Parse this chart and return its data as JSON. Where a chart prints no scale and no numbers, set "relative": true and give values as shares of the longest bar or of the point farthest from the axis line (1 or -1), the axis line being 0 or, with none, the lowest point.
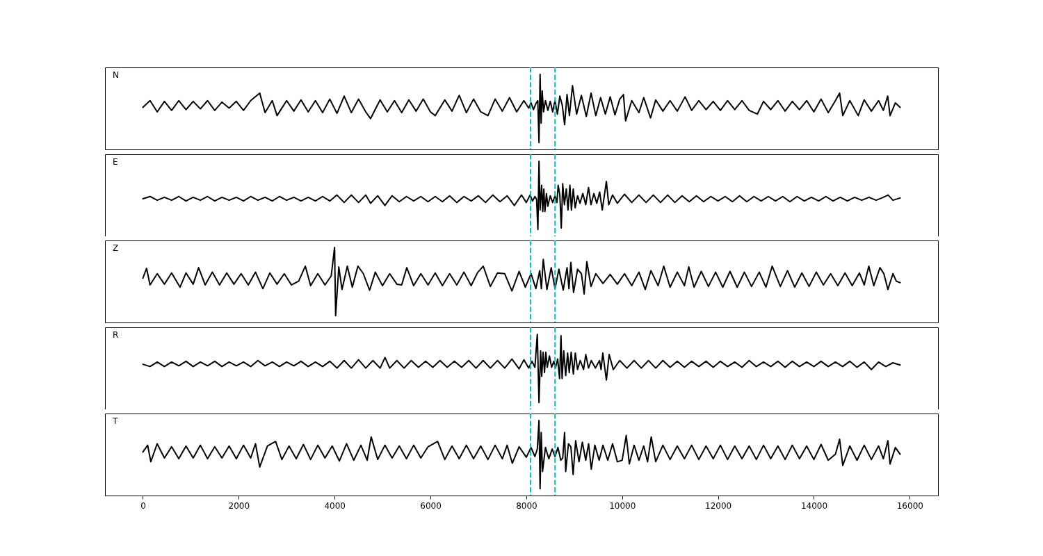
{
  "chart_data": [
    {
      "type": "line",
      "title": "N",
      "relative": true,
      "xlim": [
        -790,
        16590
      ],
      "xticks": [
        0,
        2000,
        4000,
        6000,
        8000,
        10000,
        12000,
        14000,
        16000
      ],
      "tick_labels": false,
      "ref_lines": [
        {
          "axis": "x",
          "value": 8090,
          "color": "#00bfbf",
          "line_style": "dashed"
        },
        {
          "axis": "x",
          "value": 8600,
          "color": "#00bfbf",
          "line_style": "dashed"
        }
      ],
      "x": [
        0,
        150,
        300,
        450,
        600,
        750,
        900,
        1050,
        1200,
        1350,
        1500,
        1650,
        1800,
        1950,
        2100,
        2250,
        2438,
        2550,
        2700,
        2800,
        3000,
        3150,
        3300,
        3450,
        3600,
        3750,
        3900,
        4050,
        4200,
        4350,
        4500,
        4650,
        4750,
        4950,
        5100,
        5250,
        5400,
        5550,
        5700,
        5850,
        6000,
        6100,
        6300,
        6450,
        6600,
        6750,
        6900,
        7050,
        7200,
        7350,
        7500,
        7650,
        7800,
        7950,
        8050,
        8100,
        8150,
        8200,
        8240,
        8265,
        8288,
        8310,
        8332,
        8360,
        8400,
        8450,
        8500,
        8550,
        8600,
        8650,
        8700,
        8750,
        8800,
        8850,
        8900,
        8964,
        9050,
        9150,
        9252,
        9352,
        9450,
        9550,
        9650,
        9750,
        9850,
        9950,
        10027,
        10072,
        10200,
        10350,
        10450,
        10592,
        10700,
        10850,
        11000,
        11150,
        11313,
        11450,
        11600,
        11750,
        11900,
        12050,
        12200,
        12350,
        12500,
        12650,
        12820,
        12950,
        13100,
        13250,
        13400,
        13550,
        13700,
        13850,
        14000,
        14150,
        14300,
        14450,
        14537,
        14603,
        14750,
        14925,
        15050,
        15200,
        15350,
        15450,
        15540,
        15590,
        15700,
        15800
      ],
      "series": [
        {
          "color": "#000000",
          "values": [
            0.56,
            0.65,
            0.5,
            0.64,
            0.52,
            0.65,
            0.53,
            0.64,
            0.54,
            0.65,
            0.52,
            0.63,
            0.55,
            0.64,
            0.52,
            0.65,
            0.75,
            0.49,
            0.65,
            0.45,
            0.65,
            0.51,
            0.66,
            0.5,
            0.65,
            0.49,
            0.67,
            0.48,
            0.71,
            0.49,
            0.67,
            0.5,
            0.41,
            0.66,
            0.5,
            0.65,
            0.49,
            0.66,
            0.51,
            0.67,
            0.5,
            0.45,
            0.66,
            0.51,
            0.72,
            0.49,
            0.67,
            0.5,
            0.45,
            0.67,
            0.51,
            0.69,
            0.5,
            0.65,
            0.55,
            0.62,
            0.53,
            0.61,
            0.65,
            0.09,
            1,
            0.35,
            0.78,
            0.5,
            0.65,
            0.52,
            0.64,
            0.5,
            0.65,
            0.47,
            0.71,
            0.59,
            0.33,
            0.73,
            0.45,
            0.85,
            0.47,
            0.72,
            0.44,
            0.75,
            0.45,
            0.69,
            0.47,
            0.7,
            0.46,
            0.67,
            0.73,
            0.38,
            0.65,
            0.49,
            0.69,
            0.42,
            0.66,
            0.51,
            0.65,
            0.51,
            0.7,
            0.52,
            0.65,
            0.53,
            0.64,
            0.52,
            0.65,
            0.53,
            0.65,
            0.52,
            0.47,
            0.64,
            0.53,
            0.65,
            0.51,
            0.64,
            0.53,
            0.65,
            0.5,
            0.67,
            0.49,
            0.65,
            0.75,
            0.45,
            0.65,
            0.45,
            0.66,
            0.51,
            0.65,
            0.52,
            0.71,
            0.45,
            0.62,
            0.56
          ]
        }
      ]
    },
    {
      "type": "line",
      "title": "E",
      "relative": true,
      "xlim": [
        -790,
        16590
      ],
      "xticks": [
        0,
        2000,
        4000,
        6000,
        8000,
        10000,
        12000,
        14000,
        16000
      ],
      "tick_labels": false,
      "ref_lines": [
        {
          "axis": "x",
          "value": 8090,
          "color": "#00bfbf",
          "line_style": "dashed"
        },
        {
          "axis": "x",
          "value": 8600,
          "color": "#00bfbf",
          "line_style": "dashed"
        }
      ],
      "x": [
        0,
        150,
        300,
        450,
        600,
        750,
        900,
        1050,
        1200,
        1350,
        1500,
        1650,
        1800,
        1950,
        2100,
        2250,
        2400,
        2550,
        2700,
        2850,
        3000,
        3150,
        3300,
        3450,
        3600,
        3750,
        3900,
        4050,
        4200,
        4350,
        4500,
        4650,
        4750,
        4900,
        5050,
        5200,
        5350,
        5500,
        5650,
        5800,
        5950,
        6100,
        6250,
        6400,
        6550,
        6700,
        6850,
        7000,
        7150,
        7300,
        7450,
        7600,
        7750,
        7900,
        8000,
        8080,
        8130,
        8180,
        8215,
        8242,
        8265,
        8288,
        8320,
        8343,
        8366,
        8389,
        8420,
        8450,
        8500,
        8550,
        8600,
        8640,
        8665,
        8700,
        8730,
        8760,
        8795,
        8835,
        8870,
        8910,
        8942,
        8980,
        9020,
        9070,
        9120,
        9180,
        9240,
        9298,
        9350,
        9410,
        9470,
        9530,
        9585,
        9671,
        9720,
        9800,
        9900,
        10050,
        10200,
        10350,
        10500,
        10650,
        10800,
        10950,
        11100,
        11250,
        11400,
        11550,
        11700,
        11850,
        12000,
        12150,
        12300,
        12450,
        12600,
        12750,
        12900,
        13050,
        13200,
        13350,
        13500,
        13650,
        13800,
        13950,
        14100,
        14250,
        14400,
        14550,
        14700,
        14850,
        15000,
        15150,
        15300,
        15450,
        15550,
        15650,
        15800
      ],
      "series": [
        {
          "color": "#000000",
          "values": [
            0.5,
            0.53,
            0.48,
            0.52,
            0.48,
            0.53,
            0.47,
            0.52,
            0.48,
            0.53,
            0.47,
            0.52,
            0.48,
            0.52,
            0.47,
            0.53,
            0.48,
            0.52,
            0.47,
            0.53,
            0.48,
            0.52,
            0.47,
            0.52,
            0.47,
            0.53,
            0.47,
            0.55,
            0.45,
            0.55,
            0.45,
            0.55,
            0.44,
            0.54,
            0.41,
            0.54,
            0.46,
            0.53,
            0.47,
            0.53,
            0.46,
            0.53,
            0.46,
            0.54,
            0.45,
            0.53,
            0.47,
            0.54,
            0.45,
            0.55,
            0.46,
            0.54,
            0.41,
            0.55,
            0.45,
            0.55,
            0.47,
            0.53,
            0.49,
            0.09,
            1,
            0.35,
            0.68,
            0.33,
            0.63,
            0.33,
            0.57,
            0.4,
            0.54,
            0.45,
            0.54,
            0.45,
            0.68,
            0.55,
            0.11,
            0.7,
            0.42,
            0.63,
            0.35,
            0.68,
            0.35,
            0.63,
            0.38,
            0.54,
            0.44,
            0.57,
            0.42,
            0.65,
            0.42,
            0.57,
            0.44,
            0.59,
            0.35,
            0.73,
            0.42,
            0.55,
            0.44,
            0.56,
            0.45,
            0.55,
            0.45,
            0.55,
            0.45,
            0.55,
            0.45,
            0.54,
            0.46,
            0.54,
            0.46,
            0.53,
            0.47,
            0.53,
            0.46,
            0.54,
            0.46,
            0.53,
            0.47,
            0.53,
            0.47,
            0.53,
            0.46,
            0.53,
            0.47,
            0.52,
            0.47,
            0.53,
            0.47,
            0.52,
            0.47,
            0.52,
            0.48,
            0.52,
            0.48,
            0.52,
            0.55,
            0.48,
            0.51
          ]
        }
      ]
    },
    {
      "type": "line",
      "title": "Z",
      "relative": true,
      "xlim": [
        -790,
        16590
      ],
      "xticks": [
        0,
        2000,
        4000,
        6000,
        8000,
        10000,
        12000,
        14000,
        16000
      ],
      "tick_labels": false,
      "ref_lines": [
        {
          "axis": "x",
          "value": 8090,
          "color": "#00bfbf",
          "line_style": "dashed"
        },
        {
          "axis": "x",
          "value": 8600,
          "color": "#00bfbf",
          "line_style": "dashed"
        }
      ],
      "x": [
        0,
        78,
        150,
        300,
        450,
        600,
        776,
        900,
        1050,
        1163,
        1300,
        1450,
        1600,
        1750,
        1900,
        2050,
        2200,
        2350,
        2504,
        2650,
        2800,
        2950,
        3100,
        3250,
        3390,
        3500,
        3650,
        3800,
        3930,
        4000,
        4022,
        4088,
        4155,
        4266,
        4370,
        4487,
        4600,
        4731,
        4850,
        5000,
        5150,
        5300,
        5400,
        5507,
        5650,
        5800,
        5950,
        6100,
        6250,
        6400,
        6550,
        6700,
        6850,
        6980,
        7102,
        7250,
        7400,
        7550,
        7700,
        7850,
        7980,
        8100,
        8200,
        8280,
        8315,
        8354,
        8430,
        8520,
        8600,
        8680,
        8770,
        8850,
        8890,
        8930,
        8986,
        9070,
        9150,
        9207,
        9263,
        9350,
        9450,
        9600,
        9750,
        9900,
        10050,
        10200,
        10350,
        10482,
        10600,
        10750,
        10868,
        11000,
        11150,
        11300,
        11390,
        11500,
        11650,
        11800,
        11950,
        12100,
        12250,
        12400,
        12550,
        12700,
        12860,
        13000,
        13130,
        13300,
        13450,
        13600,
        13750,
        13900,
        14050,
        14200,
        14350,
        14500,
        14650,
        14800,
        14950,
        15050,
        15146,
        15250,
        15379,
        15460,
        15545,
        15650,
        15720,
        15800
      ],
      "series": [
        {
          "color": "#000000",
          "values": [
            0.59,
            0.72,
            0.5,
            0.65,
            0.51,
            0.66,
            0.47,
            0.66,
            0.51,
            0.73,
            0.5,
            0.67,
            0.5,
            0.66,
            0.51,
            0.65,
            0.5,
            0.67,
            0.45,
            0.66,
            0.51,
            0.65,
            0.5,
            0.55,
            0.75,
            0.49,
            0.65,
            0.5,
            0.62,
            1,
            0.09,
            0.74,
            0.44,
            0.75,
            0.47,
            0.75,
            0.65,
            0.43,
            0.67,
            0.49,
            0.65,
            0.51,
            0.5,
            0.73,
            0.49,
            0.65,
            0.5,
            0.66,
            0.49,
            0.65,
            0.5,
            0.67,
            0.49,
            0.66,
            0.75,
            0.48,
            0.66,
            0.65,
            0.42,
            0.68,
            0.47,
            0.65,
            0.45,
            0.69,
            0.45,
            0.84,
            0.44,
            0.73,
            0.45,
            0.71,
            0.43,
            0.73,
            0.45,
            0.8,
            0.4,
            0.71,
            0.65,
            0.38,
            0.81,
            0.48,
            0.65,
            0.52,
            0.64,
            0.51,
            0.65,
            0.49,
            0.67,
            0.44,
            0.69,
            0.49,
            0.75,
            0.47,
            0.67,
            0.49,
            0.74,
            0.47,
            0.68,
            0.48,
            0.67,
            0.47,
            0.68,
            0.47,
            0.67,
            0.48,
            0.67,
            0.47,
            0.75,
            0.48,
            0.69,
            0.47,
            0.66,
            0.48,
            0.67,
            0.5,
            0.65,
            0.49,
            0.66,
            0.49,
            0.66,
            0.5,
            0.75,
            0.49,
            0.73,
            0.65,
            0.44,
            0.65,
            0.55,
            0.53
          ]
        }
      ]
    },
    {
      "type": "line",
      "title": "R",
      "relative": true,
      "xlim": [
        -790,
        16590
      ],
      "xticks": [
        0,
        2000,
        4000,
        6000,
        8000,
        10000,
        12000,
        14000,
        16000
      ],
      "tick_labels": false,
      "ref_lines": [
        {
          "axis": "x",
          "value": 8090,
          "color": "#00bfbf",
          "line_style": "dashed"
        },
        {
          "axis": "x",
          "value": 8600,
          "color": "#00bfbf",
          "line_style": "dashed"
        }
      ],
      "x": [
        0,
        150,
        300,
        450,
        600,
        750,
        900,
        1050,
        1200,
        1350,
        1500,
        1650,
        1800,
        1950,
        2100,
        2250,
        2400,
        2550,
        2700,
        2850,
        3000,
        3150,
        3300,
        3450,
        3600,
        3750,
        3900,
        4050,
        4200,
        4350,
        4500,
        4650,
        4800,
        4950,
        5052,
        5150,
        5300,
        5450,
        5600,
        5750,
        5900,
        6050,
        6200,
        6350,
        6500,
        6650,
        6800,
        6950,
        7100,
        7250,
        7400,
        7550,
        7700,
        7850,
        7950,
        8050,
        8120,
        8180,
        8230,
        8265,
        8299,
        8322,
        8351,
        8380,
        8408,
        8437,
        8483,
        8529,
        8575,
        8609,
        8655,
        8695,
        8724,
        8747,
        8782,
        8822,
        8862,
        8896,
        8937,
        8982,
        9023,
        9069,
        9126,
        9195,
        9241,
        9298,
        9356,
        9442,
        9528,
        9560,
        9597,
        9671,
        9729,
        9815,
        9950,
        10100,
        10250,
        10400,
        10550,
        10700,
        10850,
        11000,
        11150,
        11300,
        11450,
        11600,
        11750,
        11900,
        12050,
        12200,
        12350,
        12500,
        12650,
        12800,
        12950,
        13100,
        13250,
        13400,
        13550,
        13700,
        13850,
        14000,
        14150,
        14300,
        14450,
        14600,
        14750,
        14900,
        15050,
        15200,
        15350,
        15500,
        15650,
        15800
      ],
      "series": [
        {
          "color": "#000000",
          "values": [
            0.6,
            0.57,
            0.63,
            0.57,
            0.63,
            0.58,
            0.64,
            0.57,
            0.63,
            0.58,
            0.64,
            0.57,
            0.63,
            0.58,
            0.63,
            0.57,
            0.65,
            0.58,
            0.63,
            0.57,
            0.63,
            0.58,
            0.64,
            0.57,
            0.63,
            0.57,
            0.64,
            0.55,
            0.65,
            0.55,
            0.66,
            0.55,
            0.65,
            0.55,
            0.69,
            0.55,
            0.65,
            0.55,
            0.65,
            0.56,
            0.64,
            0.56,
            0.65,
            0.56,
            0.64,
            0.56,
            0.65,
            0.55,
            0.65,
            0.55,
            0.65,
            0.55,
            0.67,
            0.54,
            0.66,
            0.55,
            0.64,
            0.56,
            1,
            0.09,
            0.78,
            0.44,
            0.76,
            0.49,
            0.76,
            0.56,
            0.71,
            0.56,
            0.64,
            0.55,
            0.67,
            0.41,
            0.98,
            0.41,
            0.78,
            0.45,
            0.75,
            0.49,
            0.76,
            0.47,
            0.75,
            0.53,
            0.65,
            0.53,
            0.73,
            0.55,
            0.65,
            0.55,
            0.65,
            0.53,
            0.75,
            0.39,
            0.73,
            0.53,
            0.65,
            0.55,
            0.65,
            0.55,
            0.65,
            0.55,
            0.65,
            0.56,
            0.64,
            0.56,
            0.64,
            0.57,
            0.64,
            0.56,
            0.64,
            0.57,
            0.63,
            0.56,
            0.65,
            0.57,
            0.63,
            0.57,
            0.64,
            0.56,
            0.64,
            0.57,
            0.63,
            0.57,
            0.64,
            0.57,
            0.63,
            0.57,
            0.64,
            0.56,
            0.63,
            0.53,
            0.63,
            0.57,
            0.62,
            0.59
          ]
        }
      ]
    },
    {
      "type": "line",
      "title": "T",
      "relative": true,
      "xlim": [
        -790,
        16590
      ],
      "xticks": [
        0,
        2000,
        4000,
        6000,
        8000,
        10000,
        12000,
        14000,
        16000
      ],
      "tick_labels": "x",
      "ref_lines": [
        {
          "axis": "x",
          "value": 8090,
          "color": "#00bfbf",
          "line_style": "dashed"
        },
        {
          "axis": "x",
          "value": 8600,
          "color": "#00bfbf",
          "line_style": "dashed"
        }
      ],
      "x": [
        0,
        100,
        166,
        299,
        450,
        600,
        750,
        900,
        1050,
        1200,
        1350,
        1500,
        1650,
        1800,
        1950,
        2100,
        2250,
        2350,
        2438,
        2600,
        2770,
        2900,
        3050,
        3200,
        3350,
        3500,
        3650,
        3800,
        3950,
        4100,
        4250,
        4400,
        4550,
        4680,
        4764,
        4900,
        5050,
        5200,
        5350,
        5500,
        5650,
        5800,
        5950,
        6150,
        6300,
        6450,
        6600,
        6750,
        6900,
        7050,
        7200,
        7350,
        7500,
        7600,
        7708,
        7850,
        8000,
        8100,
        8180,
        8230,
        8265,
        8288,
        8311,
        8339,
        8400,
        8470,
        8540,
        8600,
        8660,
        8720,
        8760,
        8799,
        8822,
        8880,
        8930,
        8977,
        9030,
        9100,
        9170,
        9240,
        9300,
        9356,
        9430,
        9520,
        9600,
        9700,
        9800,
        9900,
        10000,
        10085,
        10150,
        10250,
        10350,
        10450,
        10530,
        10607,
        10700,
        10850,
        11000,
        11150,
        11300,
        11450,
        11600,
        11750,
        11900,
        12050,
        12200,
        12350,
        12500,
        12650,
        12800,
        12950,
        13100,
        13250,
        13400,
        13550,
        13700,
        13850,
        14000,
        14150,
        14300,
        14450,
        14537,
        14603,
        14750,
        14900,
        15050,
        15200,
        15350,
        15450,
        15545,
        15590,
        15700,
        15800
      ],
      "series": [
        {
          "color": "#000000",
          "values": [
            0.58,
            0.67,
            0.45,
            0.69,
            0.5,
            0.65,
            0.49,
            0.66,
            0.5,
            0.67,
            0.49,
            0.65,
            0.5,
            0.66,
            0.49,
            0.67,
            0.5,
            0.69,
            0.38,
            0.66,
            0.72,
            0.48,
            0.66,
            0.49,
            0.68,
            0.48,
            0.67,
            0.5,
            0.66,
            0.46,
            0.69,
            0.47,
            0.67,
            0.47,
            0.78,
            0.48,
            0.67,
            0.5,
            0.66,
            0.49,
            0.67,
            0.5,
            0.65,
            0.72,
            0.48,
            0.66,
            0.49,
            0.67,
            0.49,
            0.66,
            0.48,
            0.67,
            0.49,
            0.67,
            0.43,
            0.65,
            0.51,
            0.64,
            0.52,
            0.62,
            1,
            0.09,
            0.84,
            0.32,
            0.64,
            0.49,
            0.62,
            0.52,
            0.64,
            0.47,
            0.5,
            0.84,
            0.32,
            0.69,
            0.65,
            0.28,
            0.73,
            0.45,
            0.71,
            0.47,
            0.69,
            0.35,
            0.67,
            0.47,
            0.67,
            0.47,
            0.69,
            0.45,
            0.47,
            0.8,
            0.42,
            0.67,
            0.47,
            0.66,
            0.45,
            0.78,
            0.45,
            0.67,
            0.48,
            0.66,
            0.49,
            0.67,
            0.48,
            0.66,
            0.49,
            0.67,
            0.48,
            0.66,
            0.49,
            0.66,
            0.48,
            0.67,
            0.49,
            0.66,
            0.48,
            0.67,
            0.49,
            0.66,
            0.48,
            0.68,
            0.47,
            0.55,
            0.75,
            0.4,
            0.66,
            0.47,
            0.67,
            0.48,
            0.66,
            0.49,
            0.73,
            0.42,
            0.64,
            0.55
          ]
        }
      ]
    }
  ]
}
